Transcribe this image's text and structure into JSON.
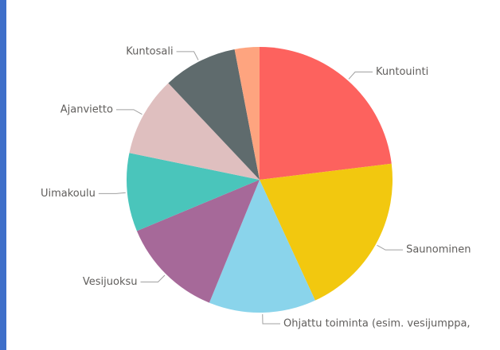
{
  "chart_data": {
    "type": "pie",
    "categories": [
      "Kuntouinti",
      "Saunominen",
      "Ohjattu toiminta (esim. vesijumppa,",
      "Vesijuoksu",
      "Uimakoulu",
      "Ajanvietto",
      "Kuntosali",
      null
    ],
    "values": [
      23,
      20,
      13,
      12.5,
      9.5,
      9.7,
      9,
      3
    ],
    "colors": [
      "#fd625e",
      "#f2c80f",
      "#8ad4eb",
      "#a66999",
      "#4ac5bb",
      "#dfbfbf",
      "#5f6b6d",
      "#fea47f"
    ]
  }
}
